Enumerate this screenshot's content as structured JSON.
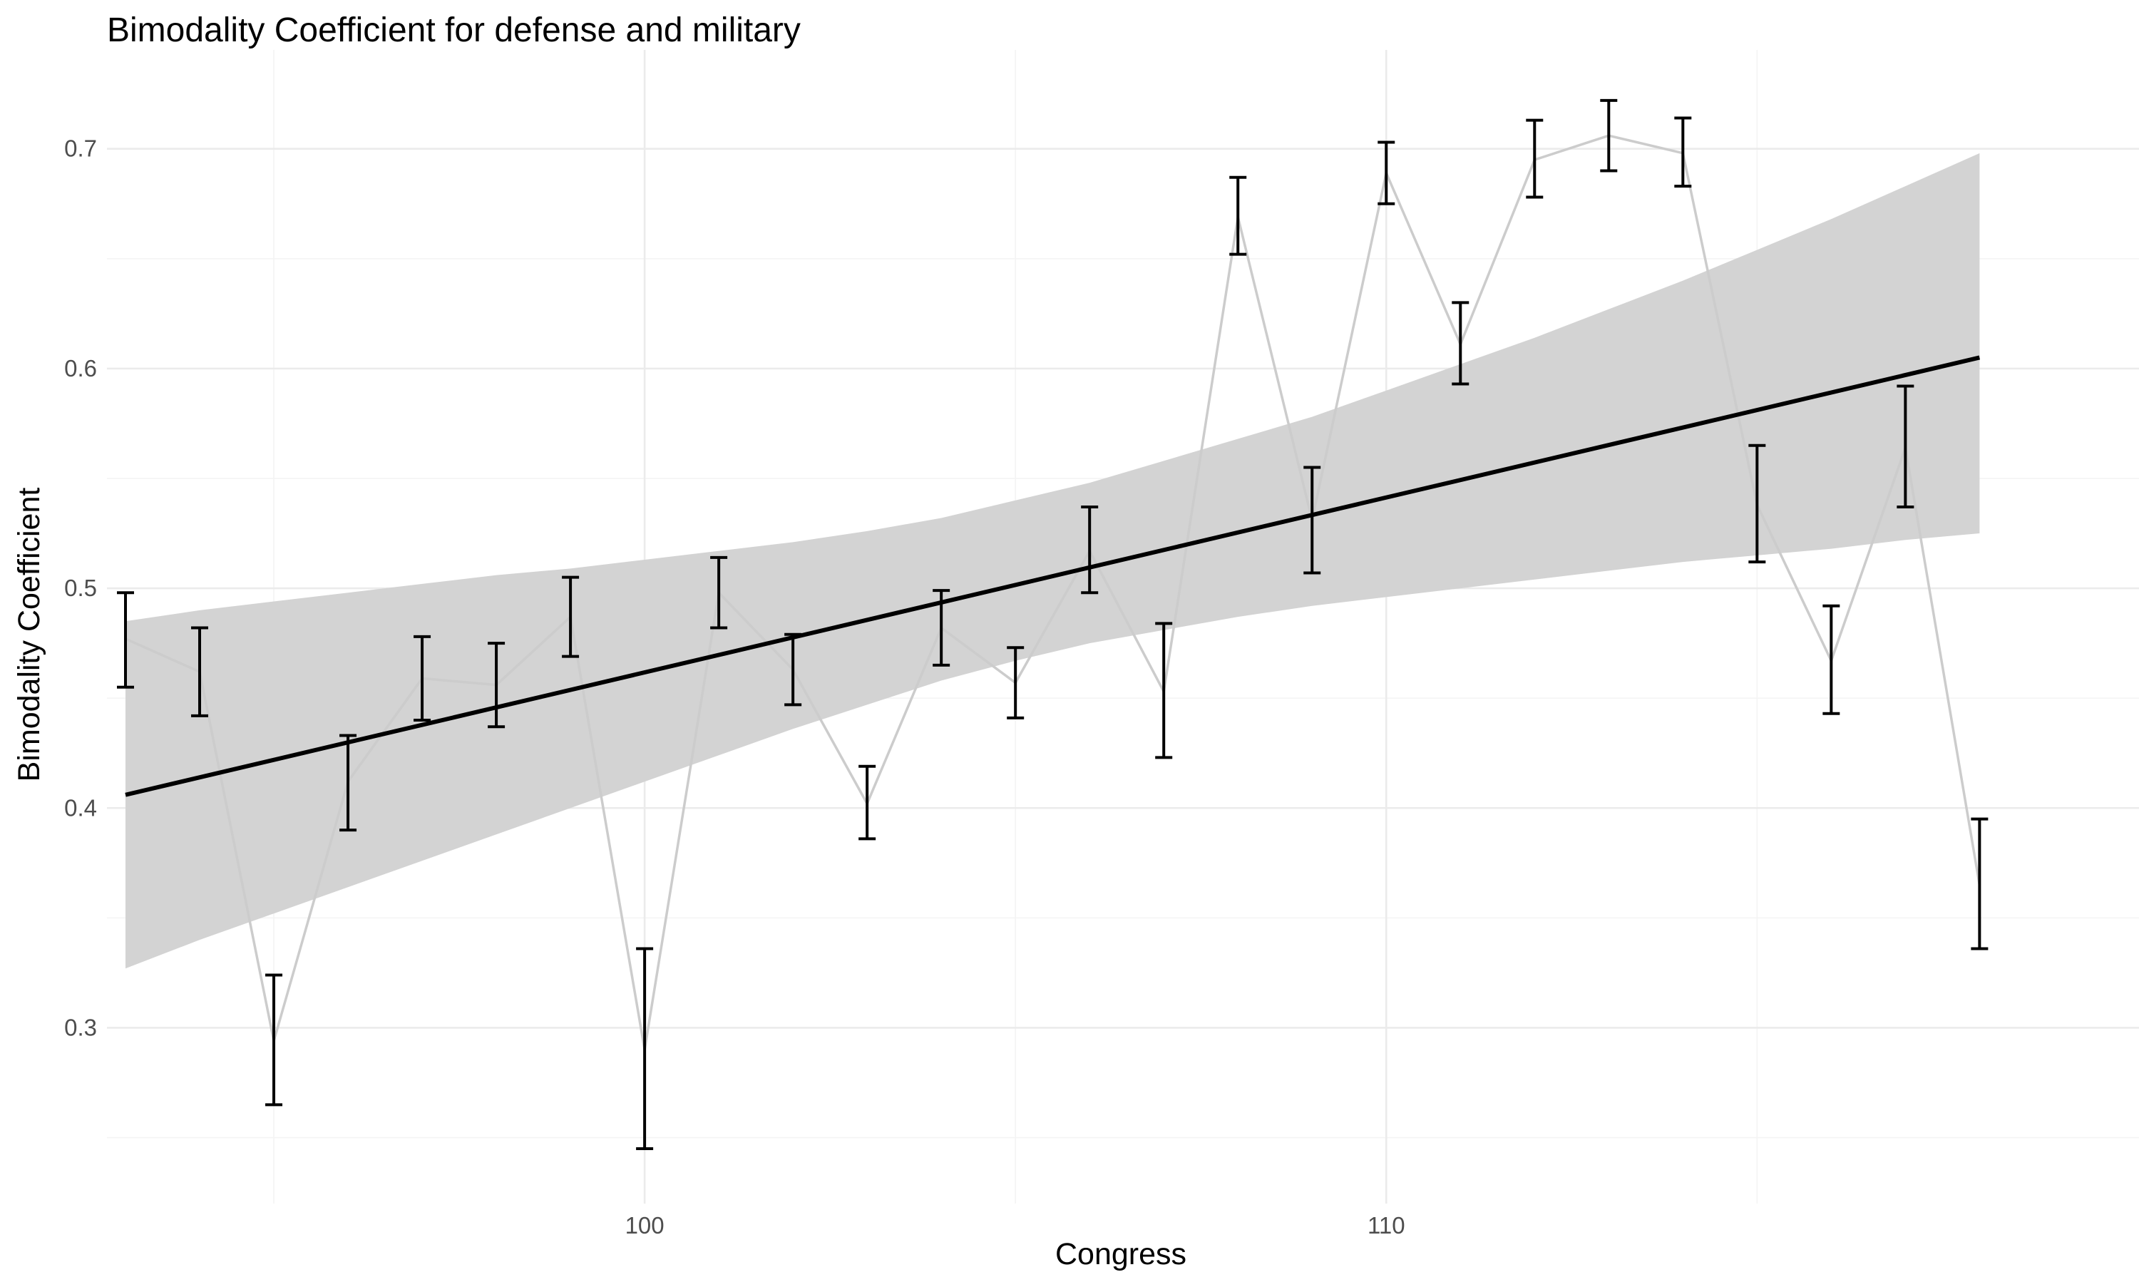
{
  "chart_data": {
    "type": "line",
    "title": "Bimodality Coefficient for defense and military",
    "xlabel": "Congress",
    "ylabel": "Bimodality Coefficient",
    "xlim": [
      92.75,
      120.15
    ],
    "ylim": [
      0.22,
      0.745
    ],
    "x_ticks": [
      100,
      110
    ],
    "x_tick_labels": [
      "100",
      "110"
    ],
    "x_minor_ticks": [
      95,
      105,
      115
    ],
    "y_ticks": [
      0.3,
      0.4,
      0.5,
      0.6,
      0.7
    ],
    "y_tick_labels": [
      "0.3",
      "0.4",
      "0.5",
      "0.6",
      "0.7"
    ],
    "y_minor_ticks": [
      0.25,
      0.35,
      0.45,
      0.55,
      0.65
    ],
    "grid": true,
    "series": [
      {
        "type": "line-with-errorbars",
        "color": "#cccccc",
        "errorbar_color": "#000000",
        "x": [
          93,
          94,
          95,
          96,
          97,
          98,
          99,
          100,
          101,
          102,
          103,
          104,
          105,
          106,
          107,
          108,
          109,
          110,
          111,
          112,
          113,
          114,
          115,
          116,
          117,
          118
        ],
        "values": [
          0.477,
          0.462,
          0.294,
          0.412,
          0.459,
          0.456,
          0.487,
          0.29,
          0.498,
          0.463,
          0.402,
          0.482,
          0.457,
          0.517,
          0.453,
          0.669,
          0.531,
          0.689,
          0.611,
          0.695,
          0.706,
          0.698,
          0.538,
          0.467,
          0.564,
          0.365
        ],
        "lower": [
          0.455,
          0.442,
          0.265,
          0.39,
          0.44,
          0.437,
          0.469,
          0.245,
          0.482,
          0.447,
          0.386,
          0.465,
          0.441,
          0.498,
          0.423,
          0.652,
          0.507,
          0.675,
          0.593,
          0.678,
          0.69,
          0.683,
          0.512,
          0.443,
          0.537,
          0.336
        ],
        "upper": [
          0.498,
          0.482,
          0.324,
          0.433,
          0.478,
          0.475,
          0.505,
          0.336,
          0.514,
          0.479,
          0.419,
          0.499,
          0.473,
          0.537,
          0.484,
          0.687,
          0.555,
          0.703,
          0.63,
          0.713,
          0.722,
          0.714,
          0.565,
          0.492,
          0.592,
          0.395
        ]
      },
      {
        "type": "trend-line",
        "color": "#000000",
        "x": [
          93,
          118
        ],
        "values": [
          0.406,
          0.605
        ]
      },
      {
        "type": "confidence-band",
        "color": "#d3d3d3",
        "x": [
          93,
          94,
          95,
          96,
          97,
          98,
          99,
          100,
          101,
          102,
          103,
          104,
          105,
          106,
          107,
          108,
          109,
          110,
          111,
          112,
          113,
          114,
          115,
          116,
          117,
          118
        ],
        "lower": [
          0.327,
          0.34,
          0.352,
          0.364,
          0.376,
          0.388,
          0.4,
          0.412,
          0.424,
          0.436,
          0.447,
          0.458,
          0.467,
          0.475,
          0.481,
          0.487,
          0.492,
          0.496,
          0.5,
          0.504,
          0.508,
          0.512,
          0.515,
          0.518,
          0.522,
          0.525
        ],
        "upper": [
          0.485,
          0.49,
          0.494,
          0.498,
          0.502,
          0.506,
          0.509,
          0.513,
          0.517,
          0.521,
          0.526,
          0.532,
          0.54,
          0.548,
          0.558,
          0.568,
          0.578,
          0.59,
          0.602,
          0.614,
          0.627,
          0.64,
          0.654,
          0.668,
          0.683,
          0.698
        ]
      }
    ]
  }
}
